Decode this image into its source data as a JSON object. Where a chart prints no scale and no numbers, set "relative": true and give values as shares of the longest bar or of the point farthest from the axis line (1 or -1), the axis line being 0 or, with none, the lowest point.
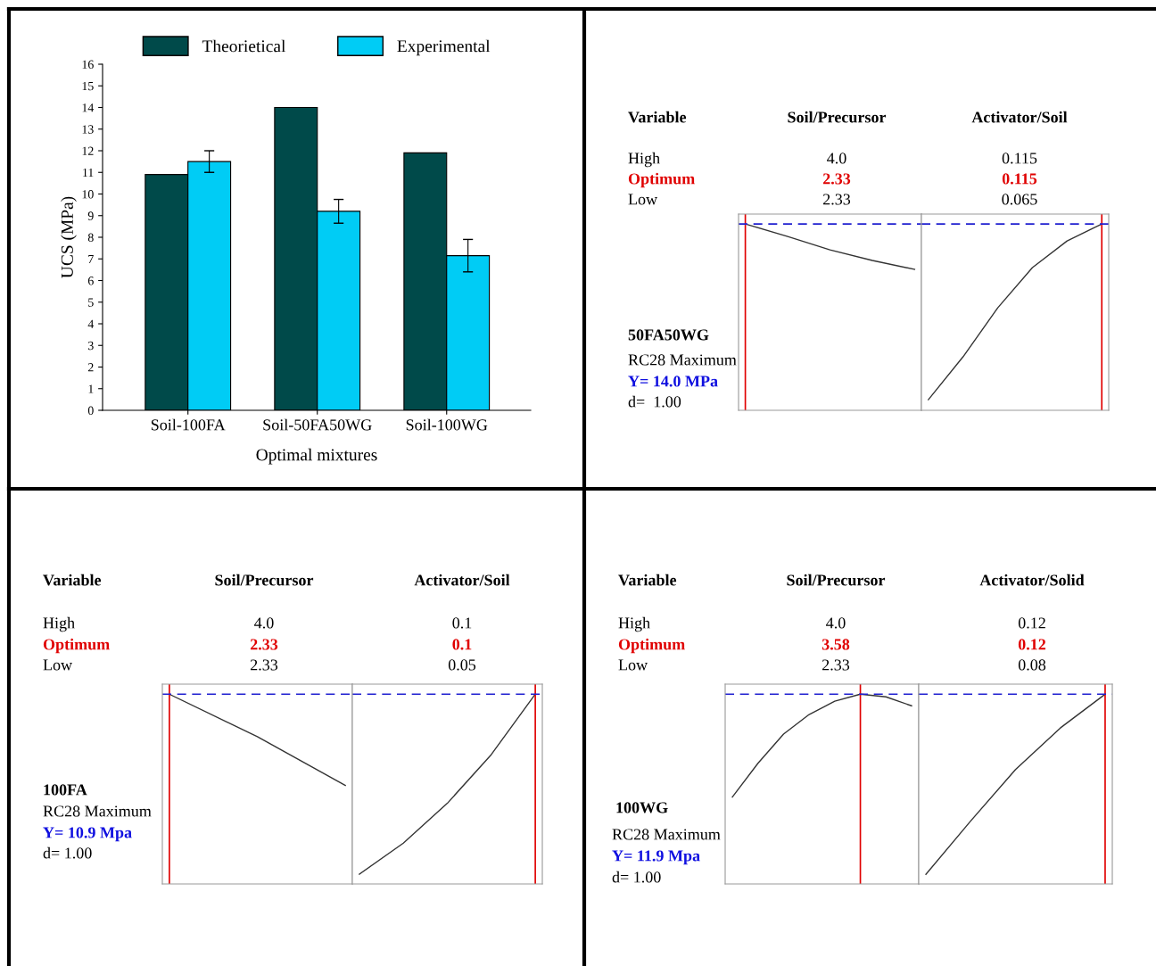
{
  "chart_data": [
    {
      "type": "bar",
      "xlabel": "Optimal mixtures",
      "ylabel": "UCS (MPa)",
      "categories": [
        "Soil-100FA",
        "Soil-50FA50WG",
        "Soil-100WG"
      ],
      "ylim": [
        0,
        16
      ],
      "yticks": [
        0,
        1,
        2,
        3,
        4,
        5,
        6,
        7,
        8,
        9,
        10,
        11,
        12,
        13,
        14,
        15,
        16
      ],
      "legend": "top",
      "grid": false,
      "series": [
        {
          "name": "Theorietical",
          "color": "#004a4a",
          "values": [
            10.9,
            14.0,
            11.9
          ]
        },
        {
          "name": "Experimental",
          "color": "#00ccf5",
          "values": [
            11.5,
            9.2,
            7.15
          ],
          "errors": [
            0.5,
            0.55,
            0.75
          ]
        }
      ]
    },
    {
      "type": "other",
      "annotations": [
        "Variable",
        "Soil/Precursor",
        "Activator/Soil",
        "High",
        "4.0",
        "0.115",
        "Optimum",
        "2.33",
        "0.115",
        "Low",
        "2.33",
        "0.065",
        "50FA50WG",
        "RC28 Maximum",
        "Y= 14.0 MPa",
        "d=  1.00"
      ]
    },
    {
      "type": "line",
      "relative": true,
      "tick_labels": false,
      "categories": [
        null,
        null,
        null,
        null,
        null
      ],
      "series": [
        {
          "color": "#333333",
          "values": [
            1,
            0.933,
            0.861,
            0.804,
            0.756
          ]
        }
      ],
      "ref_lines": [
        {
          "axis": "y",
          "value": 1,
          "color": "#2020d0",
          "line_style": "dashed"
        }
      ]
    },
    {
      "type": "line",
      "relative": true,
      "tick_labels": false,
      "categories": [
        null,
        null,
        null,
        null,
        null,
        null
      ],
      "series": [
        {
          "color": "#333333",
          "values": [
            0.057,
            0.287,
            0.55,
            0.766,
            0.909,
            1
          ]
        }
      ],
      "ref_lines": [
        {
          "axis": "y",
          "value": 1,
          "color": "#2020d0",
          "line_style": "dashed"
        }
      ]
    },
    {
      "type": "other",
      "annotations": [
        "Variable",
        "Soil/Precursor",
        "Activator/Soil",
        "High",
        "4.0",
        "0.1",
        "Optimum",
        "2.33",
        "0.1",
        "Low",
        "2.33",
        "0.05",
        "100FA",
        "RC28 Maximum",
        "Y= 10.9 Mpa",
        "d= 1.00"
      ]
    },
    {
      "type": "line",
      "relative": true,
      "tick_labels": false,
      "categories": [
        null,
        null,
        null
      ],
      "series": [
        {
          "color": "#333333",
          "values": [
            1,
            0.776,
            0.519
          ]
        }
      ],
      "ref_lines": [
        {
          "axis": "y",
          "value": 1,
          "color": "#2020d0",
          "line_style": "dashed"
        }
      ]
    },
    {
      "type": "line",
      "relative": true,
      "tick_labels": false,
      "categories": [
        null,
        null,
        null,
        null,
        null
      ],
      "series": [
        {
          "color": "#333333",
          "values": [
            0.051,
            0.215,
            0.425,
            0.682,
            1
          ]
        }
      ],
      "ref_lines": [
        {
          "axis": "y",
          "value": 1,
          "color": "#2020d0",
          "line_style": "dashed"
        }
      ]
    },
    {
      "type": "other",
      "annotations": [
        "Variable",
        "Soil/Precursor",
        "Activator/Solid",
        "High",
        "4.0",
        "0.12",
        "Optimum",
        "3.58",
        "0.12",
        "Low",
        "2.33",
        "0.08",
        "100WG",
        "RC28 Maximum",
        "Y= 11.9 Mpa",
        "d= 1.00"
      ]
    },
    {
      "type": "line",
      "relative": true,
      "tick_labels": false,
      "categories": [
        null,
        null,
        null,
        null,
        null,
        null,
        null,
        null
      ],
      "series": [
        {
          "color": "#333333",
          "values": [
            0.458,
            0.636,
            0.79,
            0.893,
            0.963,
            1,
            0.986,
            0.939
          ]
        }
      ],
      "ref_lines": [
        {
          "axis": "y",
          "value": 1,
          "color": "#2020d0",
          "line_style": "dashed"
        }
      ]
    },
    {
      "type": "line",
      "relative": true,
      "tick_labels": false,
      "categories": [
        null,
        null,
        null,
        null,
        null
      ],
      "series": [
        {
          "color": "#333333",
          "values": [
            0.051,
            0.332,
            0.603,
            0.822,
            1
          ]
        }
      ],
      "ref_lines": [
        {
          "axis": "y",
          "value": 1,
          "color": "#2020d0",
          "line_style": "dashed"
        }
      ]
    }
  ]
}
